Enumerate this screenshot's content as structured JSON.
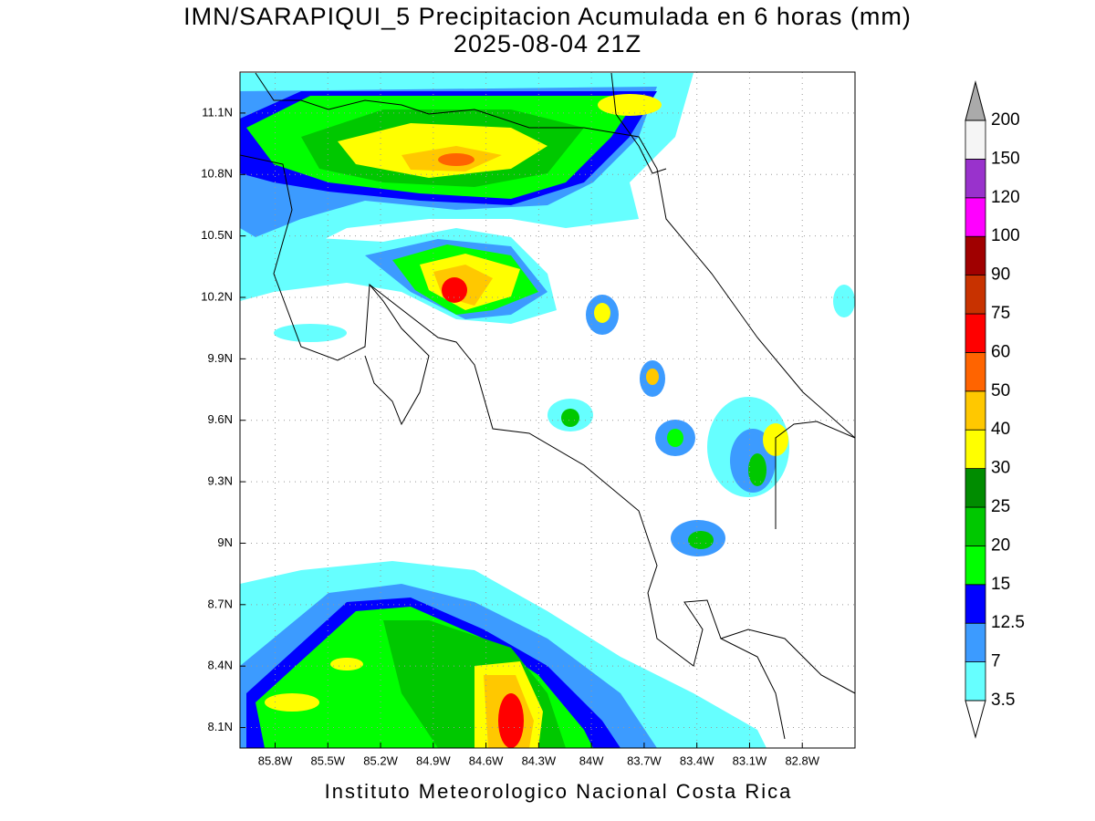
{
  "map": {
    "title": "IMN/SARAPIQUI_5 Precipitacion Acumulada en 6 horas (mm)",
    "subtitle": "2025-08-04 21Z",
    "xlim": [
      -86.0,
      -82.5
    ],
    "ylim": [
      8.0,
      11.3
    ],
    "xticks": [
      {
        "value": -85.8,
        "label": "85.8W"
      },
      {
        "value": -85.5,
        "label": "85.5W"
      },
      {
        "value": -85.2,
        "label": "85.2W"
      },
      {
        "value": -84.9,
        "label": "84.9W"
      },
      {
        "value": -84.6,
        "label": "84.6W"
      },
      {
        "value": -84.3,
        "label": "84.3W"
      },
      {
        "value": -84.0,
        "label": "84W"
      },
      {
        "value": -83.7,
        "label": "83.7W"
      },
      {
        "value": -83.4,
        "label": "83.4W"
      },
      {
        "value": -83.1,
        "label": "83.1W"
      },
      {
        "value": -82.8,
        "label": "82.8W"
      }
    ],
    "yticks": [
      {
        "value": 8.1,
        "label": "8.1N"
      },
      {
        "value": 8.4,
        "label": "8.4N"
      },
      {
        "value": 8.7,
        "label": "8.7N"
      },
      {
        "value": 9.0,
        "label": "9N"
      },
      {
        "value": 9.3,
        "label": "9.3N"
      },
      {
        "value": 9.6,
        "label": "9.6N"
      },
      {
        "value": 9.9,
        "label": "9.9N"
      },
      {
        "value": 10.2,
        "label": "10.2N"
      },
      {
        "value": 10.5,
        "label": "10.5N"
      },
      {
        "value": 10.8,
        "label": "10.8N"
      },
      {
        "value": 11.1,
        "label": "11.1N"
      }
    ],
    "grid": true
  },
  "colorbar": {
    "levels": [
      3.5,
      7,
      12.5,
      15,
      20,
      25,
      30,
      40,
      50,
      60,
      75,
      90,
      100,
      120,
      150,
      200
    ],
    "colors": [
      "#66ffff",
      "#3c9bff",
      "#0000ff",
      "#00ff00",
      "#00c800",
      "#008c00",
      "#ffff00",
      "#ffc800",
      "#ff6400",
      "#ff0000",
      "#c83200",
      "#a00000",
      "#ff00ff",
      "#9932cc",
      "#f5f5f5"
    ],
    "under_color": "#ffffff",
    "over_color": "#aaaaaa"
  },
  "footer": "Instituto Meteorologico Nacional Costa Rica"
}
